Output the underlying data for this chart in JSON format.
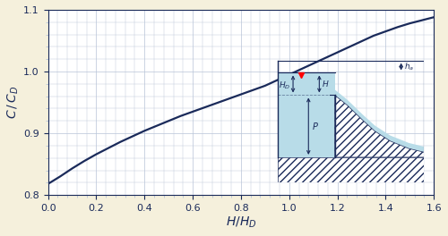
{
  "background_color": "#f5f0dc",
  "plot_bg_color": "#ffffff",
  "grid_color": "#b8c4d8",
  "line_color": "#1a2a5a",
  "xlim": [
    0,
    1.6
  ],
  "ylim": [
    0.8,
    1.1
  ],
  "xticks": [
    0,
    0.2,
    0.4,
    0.6,
    0.8,
    1.0,
    1.2,
    1.4,
    1.6
  ],
  "yticks": [
    0.8,
    0.9,
    1.0,
    1.1
  ],
  "xlabel": "H/H_D",
  "ylabel": "C / C_D",
  "inset_fill": "#b8dce8",
  "curve_points_x": [
    0.0,
    0.05,
    0.1,
    0.15,
    0.2,
    0.25,
    0.3,
    0.35,
    0.4,
    0.45,
    0.5,
    0.55,
    0.6,
    0.65,
    0.7,
    0.75,
    0.8,
    0.85,
    0.9,
    0.95,
    1.0,
    1.05,
    1.1,
    1.15,
    1.2,
    1.25,
    1.3,
    1.35,
    1.4,
    1.45,
    1.5,
    1.55,
    1.6
  ],
  "curve_points_y": [
    0.818,
    0.83,
    0.843,
    0.855,
    0.866,
    0.876,
    0.886,
    0.895,
    0.904,
    0.912,
    0.92,
    0.928,
    0.935,
    0.942,
    0.949,
    0.956,
    0.963,
    0.97,
    0.977,
    0.986,
    0.995,
    1.004,
    1.013,
    1.022,
    1.031,
    1.04,
    1.049,
    1.058,
    1.065,
    1.072,
    1.078,
    1.083,
    1.088
  ]
}
